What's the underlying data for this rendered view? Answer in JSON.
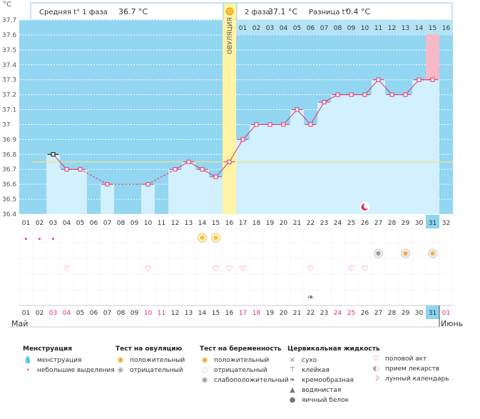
{
  "header": {
    "unit": "°C",
    "phase1_label": "Средняя t° 1 фаза",
    "phase1_value": "36.7 °C",
    "phase2_label": "2 фаза",
    "phase2_value": "37.1 °C",
    "diff_label": "Разница t°",
    "diff_value": "0.4 °C"
  },
  "colors": {
    "plot_bg": "#92D6F2",
    "bar_fill": "#D2F0FD",
    "line": "#E0306A",
    "ovulation": "#FFF4A6",
    "ovulation_light": "#FFFBD6",
    "today_col": "#F8B9C9",
    "today_tab": "#8CD4F2",
    "coverline": "#F1E58A"
  },
  "chart_data": {
    "type": "line",
    "title": "",
    "ylabel": "°C",
    "ylim": [
      36.4,
      37.7
    ],
    "yticks": [
      "37.7",
      "37.6",
      "37.5",
      "37.4",
      "37.3",
      "37.2",
      "37.1",
      "37",
      "36.9",
      "36.8",
      "36.7",
      "36.6",
      "36.5",
      "36.4"
    ],
    "coverline": 36.75,
    "ovulation_day": 16,
    "ovulation_label": "ОВУЛЯЦИЯ",
    "cycle_days_bottom": [
      "01",
      "02",
      "03",
      "04",
      "05",
      "06",
      "07",
      "08",
      "09",
      "10",
      "11",
      "12",
      "13",
      "14",
      "15",
      "16",
      "17",
      "18",
      "19",
      "20",
      "21",
      "22",
      "23",
      "24",
      "25",
      "26",
      "27",
      "28",
      "29",
      "30",
      "31",
      "32"
    ],
    "cycle_days_top_phase2": [
      "01",
      "02",
      "03",
      "04",
      "05",
      "06",
      "07",
      "08",
      "09",
      "10",
      "11",
      "12",
      "13",
      "14",
      "15",
      "16"
    ],
    "dates": [
      "01",
      "02",
      "03",
      "04",
      "05",
      "06",
      "07",
      "08",
      "09",
      "10",
      "11",
      "12",
      "13",
      "14",
      "15",
      "16",
      "17",
      "18",
      "19",
      "20",
      "21",
      "22",
      "23",
      "24",
      "25",
      "26",
      "27",
      "28",
      "29",
      "30",
      "31",
      "01"
    ],
    "red_dates": [
      3,
      4,
      10,
      11,
      17,
      18,
      24,
      25
    ],
    "month_left": "Май",
    "month_right": "Июнь",
    "temps": [
      null,
      null,
      36.8,
      36.7,
      36.7,
      null,
      36.6,
      null,
      null,
      36.6,
      null,
      36.7,
      36.75,
      36.7,
      36.65,
      36.75,
      36.9,
      37.0,
      37.0,
      37.0,
      37.1,
      37.0,
      37.15,
      37.2,
      37.2,
      37.2,
      37.3,
      37.2,
      37.2,
      37.3,
      37.3,
      null
    ],
    "bars": [
      null,
      null,
      36.8,
      36.7,
      36.7,
      null,
      36.6,
      null,
      null,
      36.6,
      null,
      36.7,
      36.75,
      36.7,
      36.65,
      36.75,
      36.9,
      37.0,
      37.0,
      37.0,
      37.1,
      37.0,
      37.15,
      37.2,
      37.2,
      37.2,
      37.3,
      37.2,
      37.2,
      37.3,
      37.3,
      null
    ],
    "today_day": 31,
    "today_label": "31",
    "moon_day": 26
  },
  "markers": {
    "menstruation_days": [
      1,
      2,
      3
    ],
    "ovulation_test_pos_days": [
      14,
      15
    ],
    "pregnancy_test_days": [
      27,
      29,
      31
    ],
    "intercourse_days": [
      4,
      10,
      15,
      16,
      17,
      22,
      25,
      26
    ],
    "cervical_days": [
      22
    ]
  },
  "legend": {
    "menstruation": {
      "title": "Менструация",
      "items": [
        "менструация",
        "небольшие выделения"
      ]
    },
    "ovulation_test": {
      "title": "Тест на овуляцию",
      "items": [
        "положительный",
        "отрицательный"
      ]
    },
    "pregnancy_test": {
      "title": "Тест на беременность",
      "items": [
        "положительный",
        "отрицательный",
        "слабоположительный"
      ]
    },
    "cervical": {
      "title": "Цервикальная жидкость",
      "items": [
        "сухо",
        "клейкая",
        "кремообразная",
        "водянистая",
        "яичный белок"
      ]
    },
    "other": {
      "items": [
        "половой акт",
        "прием лекарств",
        "лунный календарь"
      ]
    }
  }
}
